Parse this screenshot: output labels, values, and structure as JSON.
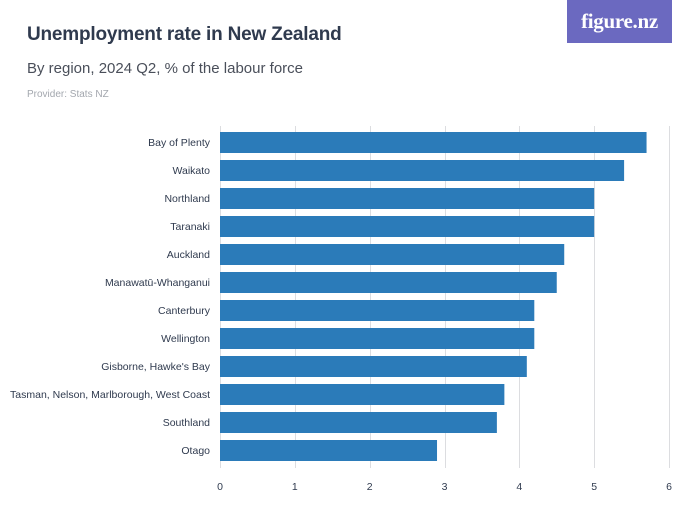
{
  "header": {
    "title": "Unemployment rate in New Zealand",
    "subtitle": "By region, 2024 Q2, % of the labour force",
    "provider": "Provider: Stats NZ",
    "logo_text": "figure.nz",
    "logo_color": "#6b69c0"
  },
  "chart_data": {
    "type": "bar",
    "orientation": "horizontal",
    "categories": [
      "Bay of Plenty",
      "Waikato",
      "Northland",
      "Taranaki",
      "Auckland",
      "Manawatū-Whanganui",
      "Canterbury",
      "Wellington",
      "Gisborne, Hawke's Bay",
      "Tasman, Nelson, Marlborough, West Coast",
      "Southland",
      "Otago"
    ],
    "values": [
      5.7,
      5.4,
      5.0,
      5.0,
      4.6,
      4.5,
      4.2,
      4.2,
      4.1,
      3.8,
      3.7,
      2.9
    ],
    "xlim": [
      0,
      6
    ],
    "xticks": [
      0,
      1,
      2,
      3,
      4,
      5,
      6
    ],
    "grid": true,
    "bar_color": "#2b7bb9"
  }
}
